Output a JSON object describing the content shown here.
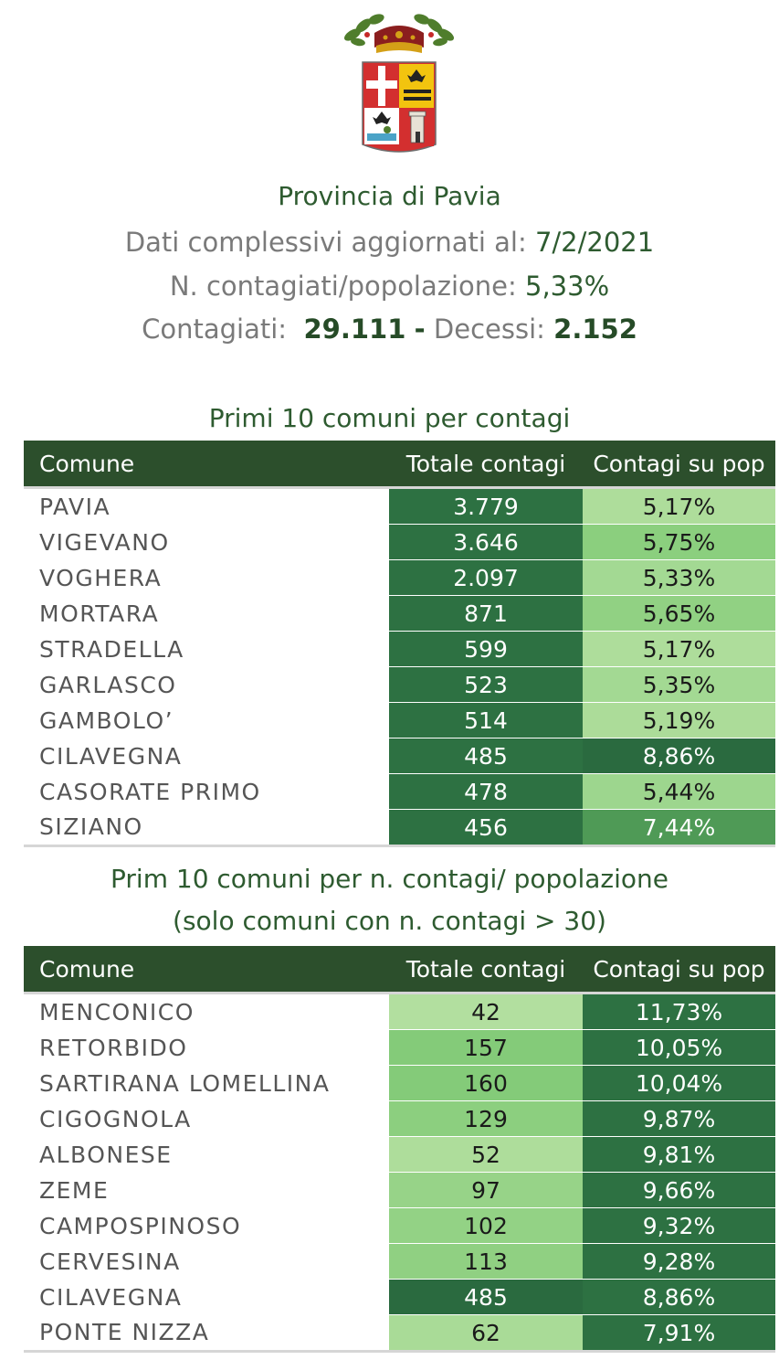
{
  "header": {
    "title": "Provincia di Pavia",
    "updated_label": "Dati complessivi aggiornati al:",
    "updated_date": "7/2/2021",
    "ratio_label": "N. contagiati/popolazione:",
    "ratio_value": "5,33%",
    "infected_label": "Contagiati:",
    "infected_value": "29.111",
    "separator": "-",
    "deaths_label": "Decessi:",
    "deaths_value": "2.152"
  },
  "table1": {
    "title": "Primi 10 comuni per contagi",
    "columns": [
      "Comune",
      "Totale contagi",
      "Contagi su pop"
    ],
    "rows": [
      {
        "comune": "PAVIA",
        "totale": "3.779",
        "pct": "5,17%",
        "totale_color": "#2d7142",
        "pct_color": "#aedd9b",
        "totale_dark": true,
        "pct_dark": false
      },
      {
        "comune": "VIGEVANO",
        "totale": "3.646",
        "pct": "5,75%",
        "totale_color": "#2d7142",
        "pct_color": "#8bcf7e",
        "totale_dark": true,
        "pct_dark": false
      },
      {
        "comune": "VOGHERA",
        "totale": "2.097",
        "pct": "5,33%",
        "totale_color": "#2d7142",
        "pct_color": "#a3d993",
        "totale_dark": true,
        "pct_dark": false
      },
      {
        "comune": "MORTARA",
        "totale": "871",
        "pct": "5,65%",
        "totale_color": "#2d7142",
        "pct_color": "#91d183",
        "totale_dark": true,
        "pct_dark": false
      },
      {
        "comune": "STRADELLA",
        "totale": "599",
        "pct": "5,17%",
        "totale_color": "#2d7142",
        "pct_color": "#aedd9b",
        "totale_dark": true,
        "pct_dark": false
      },
      {
        "comune": "GARLASCO",
        "totale": "523",
        "pct": "5,35%",
        "totale_color": "#2d7142",
        "pct_color": "#a3d993",
        "totale_dark": true,
        "pct_dark": false
      },
      {
        "comune": "GAMBOLO’",
        "totale": "514",
        "pct": "5,19%",
        "totale_color": "#2d7142",
        "pct_color": "#acdc99",
        "totale_dark": true,
        "pct_dark": false
      },
      {
        "comune": "CILAVEGNA",
        "totale": "485",
        "pct": "8,86%",
        "totale_color": "#2d7142",
        "pct_color": "#2a6a3f",
        "totale_dark": true,
        "pct_dark": true
      },
      {
        "comune": "CASORATE PRIMO",
        "totale": "478",
        "pct": "5,44%",
        "totale_color": "#2d7142",
        "pct_color": "#9dd68e",
        "totale_dark": true,
        "pct_dark": false
      },
      {
        "comune": "SIZIANO",
        "totale": "456",
        "pct": "7,44%",
        "totale_color": "#2d7142",
        "pct_color": "#4f9a56",
        "totale_dark": true,
        "pct_dark": true
      }
    ]
  },
  "table2": {
    "title_line1": "Prim 10 comuni per n. contagi/ popolazione",
    "title_line2": "(solo comuni con n. contagi > 30)",
    "columns": [
      "Comune",
      "Totale contagi",
      "Contagi su pop"
    ],
    "rows": [
      {
        "comune": "MENCONICO",
        "totale": "42",
        "pct": "11,73%",
        "totale_color": "#b2df9f",
        "pct_color": "#2d7142",
        "totale_dark": false,
        "pct_dark": true
      },
      {
        "comune": "RETORBIDO",
        "totale": "157",
        "pct": "10,05%",
        "totale_color": "#84cb79",
        "pct_color": "#2d7142",
        "totale_dark": false,
        "pct_dark": true
      },
      {
        "comune": "SARTIRANA LOMELLINA",
        "totale": "160",
        "pct": "10,04%",
        "totale_color": "#84cb79",
        "pct_color": "#2d7142",
        "totale_dark": false,
        "pct_dark": true
      },
      {
        "comune": "CIGOGNOLA",
        "totale": "129",
        "pct": "9,87%",
        "totale_color": "#8ccf7f",
        "pct_color": "#2d7142",
        "totale_dark": false,
        "pct_dark": true
      },
      {
        "comune": "ALBONESE",
        "totale": "52",
        "pct": "9,81%",
        "totale_color": "#aedd9b",
        "pct_color": "#2d7142",
        "totale_dark": false,
        "pct_dark": true
      },
      {
        "comune": "ZEME",
        "totale": "97",
        "pct": "9,66%",
        "totale_color": "#97d388",
        "pct_color": "#2d7142",
        "totale_dark": false,
        "pct_dark": true
      },
      {
        "comune": "CAMPOSPINOSO",
        "totale": "102",
        "pct": "9,32%",
        "totale_color": "#93d285",
        "pct_color": "#2d7142",
        "totale_dark": false,
        "pct_dark": true
      },
      {
        "comune": "CERVESINA",
        "totale": "113",
        "pct": "9,28%",
        "totale_color": "#90d082",
        "pct_color": "#2d7142",
        "totale_dark": false,
        "pct_dark": true
      },
      {
        "comune": "CILAVEGNA",
        "totale": "485",
        "pct": "8,86%",
        "totale_color": "#2a6a3f",
        "pct_color": "#2d7142",
        "totale_dark": true,
        "pct_dark": true
      },
      {
        "comune": "PONTE NIZZA",
        "totale": "62",
        "pct": "7,91%",
        "totale_color": "#a9db97",
        "pct_color": "#2d7142",
        "totale_dark": false,
        "pct_dark": true
      }
    ]
  }
}
